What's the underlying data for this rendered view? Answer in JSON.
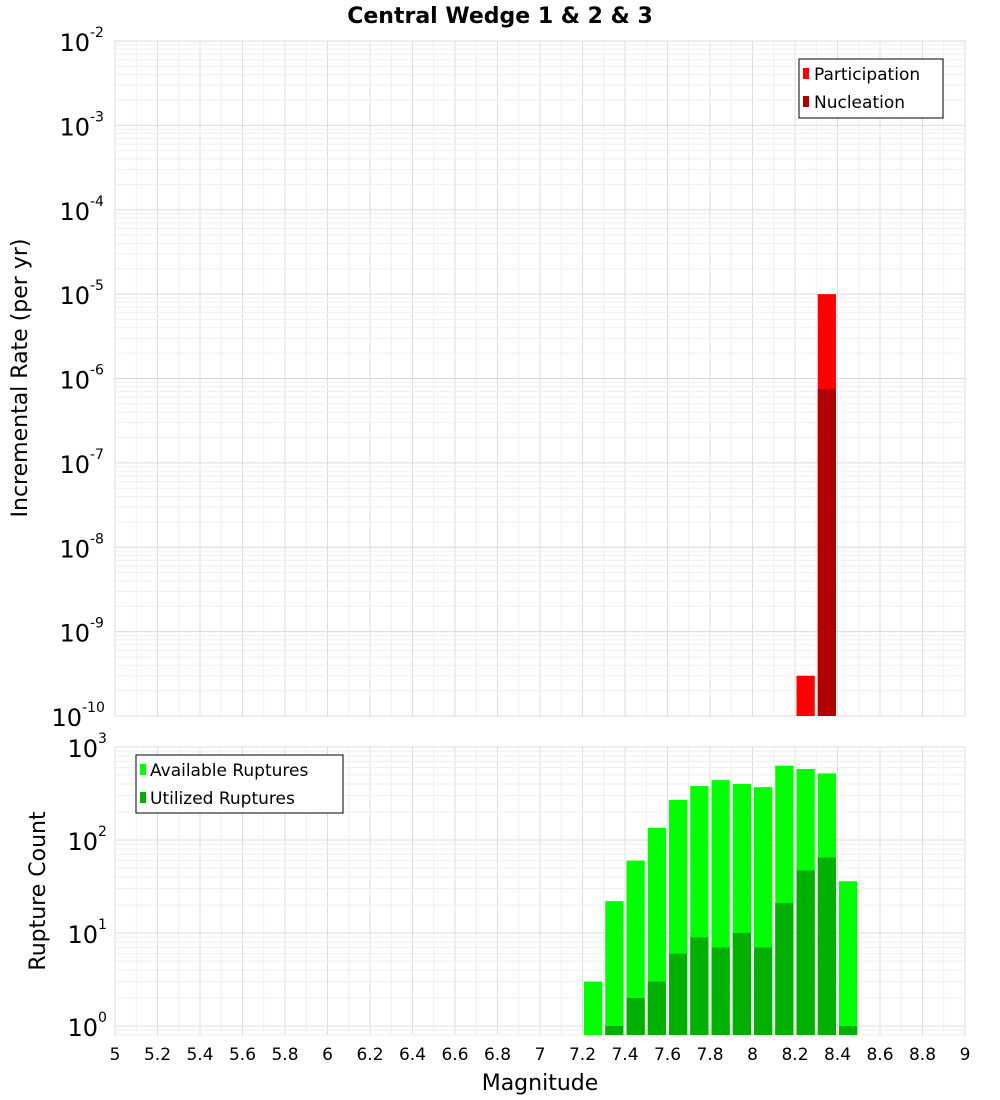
{
  "chart_data": [
    {
      "type": "bar",
      "title": "Central Wedge 1 & 2 & 3",
      "xlabel": "",
      "ylabel": "Incremental Rate (per yr)",
      "yscale": "log",
      "xlim": [
        5,
        9
      ],
      "ylim": [
        1e-10,
        0.01
      ],
      "y_tick_exponents": [
        "-2",
        "-3",
        "-4",
        "-5",
        "-6",
        "-7",
        "-8",
        "-9",
        "-10"
      ],
      "y_tick_base": "10",
      "bar_width": 0.1,
      "legend": {
        "position": "top-right",
        "entries": [
          "Participation",
          "Nucleation"
        ]
      },
      "series": [
        {
          "name": "Participation",
          "color": "#ff0000",
          "x": [
            8.25,
            8.35
          ],
          "values": [
            3e-10,
            1e-05
          ]
        },
        {
          "name": "Nucleation",
          "color": "#b00000",
          "x": [
            8.35
          ],
          "values": [
            7.5e-07
          ]
        }
      ]
    },
    {
      "type": "bar",
      "title": "",
      "xlabel": "Magnitude",
      "ylabel": "Rupture Count",
      "yscale": "log",
      "xlim": [
        5,
        9
      ],
      "ylim": [
        0.8,
        1000
      ],
      "y_tick_exponents": [
        "3",
        "2",
        "1",
        "0"
      ],
      "y_tick_base": "10",
      "bar_width": 0.1,
      "x_tick_labels": [
        "5",
        "5.2",
        "5.4",
        "5.6",
        "5.8",
        "6",
        "6.2",
        "6.4",
        "6.6",
        "6.8",
        "7",
        "7.2",
        "7.4",
        "7.6",
        "7.8",
        "8",
        "8.2",
        "8.4",
        "8.6",
        "8.8",
        "9"
      ],
      "legend": {
        "position": "top-left",
        "entries": [
          "Available Ruptures",
          "Utilized Ruptures"
        ]
      },
      "series": [
        {
          "name": "Available Ruptures",
          "color": "#00ff00",
          "x": [
            7.25,
            7.35,
            7.45,
            7.55,
            7.65,
            7.75,
            7.85,
            7.95,
            8.05,
            8.15,
            8.25,
            8.35,
            8.45
          ],
          "values": [
            3,
            22,
            60,
            135,
            270,
            380,
            440,
            400,
            370,
            630,
            580,
            520,
            36
          ]
        },
        {
          "name": "Utilized Ruptures",
          "color": "#00b000",
          "x": [
            7.35,
            7.45,
            7.55,
            7.65,
            7.75,
            7.85,
            7.95,
            8.05,
            8.15,
            8.25,
            8.35,
            8.45
          ],
          "values": [
            1,
            2,
            3,
            6,
            9,
            7,
            10,
            7,
            21,
            47,
            65,
            1
          ]
        }
      ]
    }
  ]
}
